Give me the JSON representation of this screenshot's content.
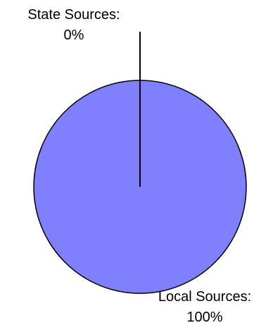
{
  "chart_data": {
    "type": "pie",
    "categories": [
      "State Sources",
      "Local Sources"
    ],
    "values": [
      0,
      100
    ],
    "labels": [
      {
        "name": "State Sources:",
        "pct": "0%"
      },
      {
        "name": "Local Sources:",
        "pct": "100%"
      }
    ],
    "colors": {
      "local": "#8080ff",
      "state": "#000000",
      "outline": "#000000"
    }
  }
}
